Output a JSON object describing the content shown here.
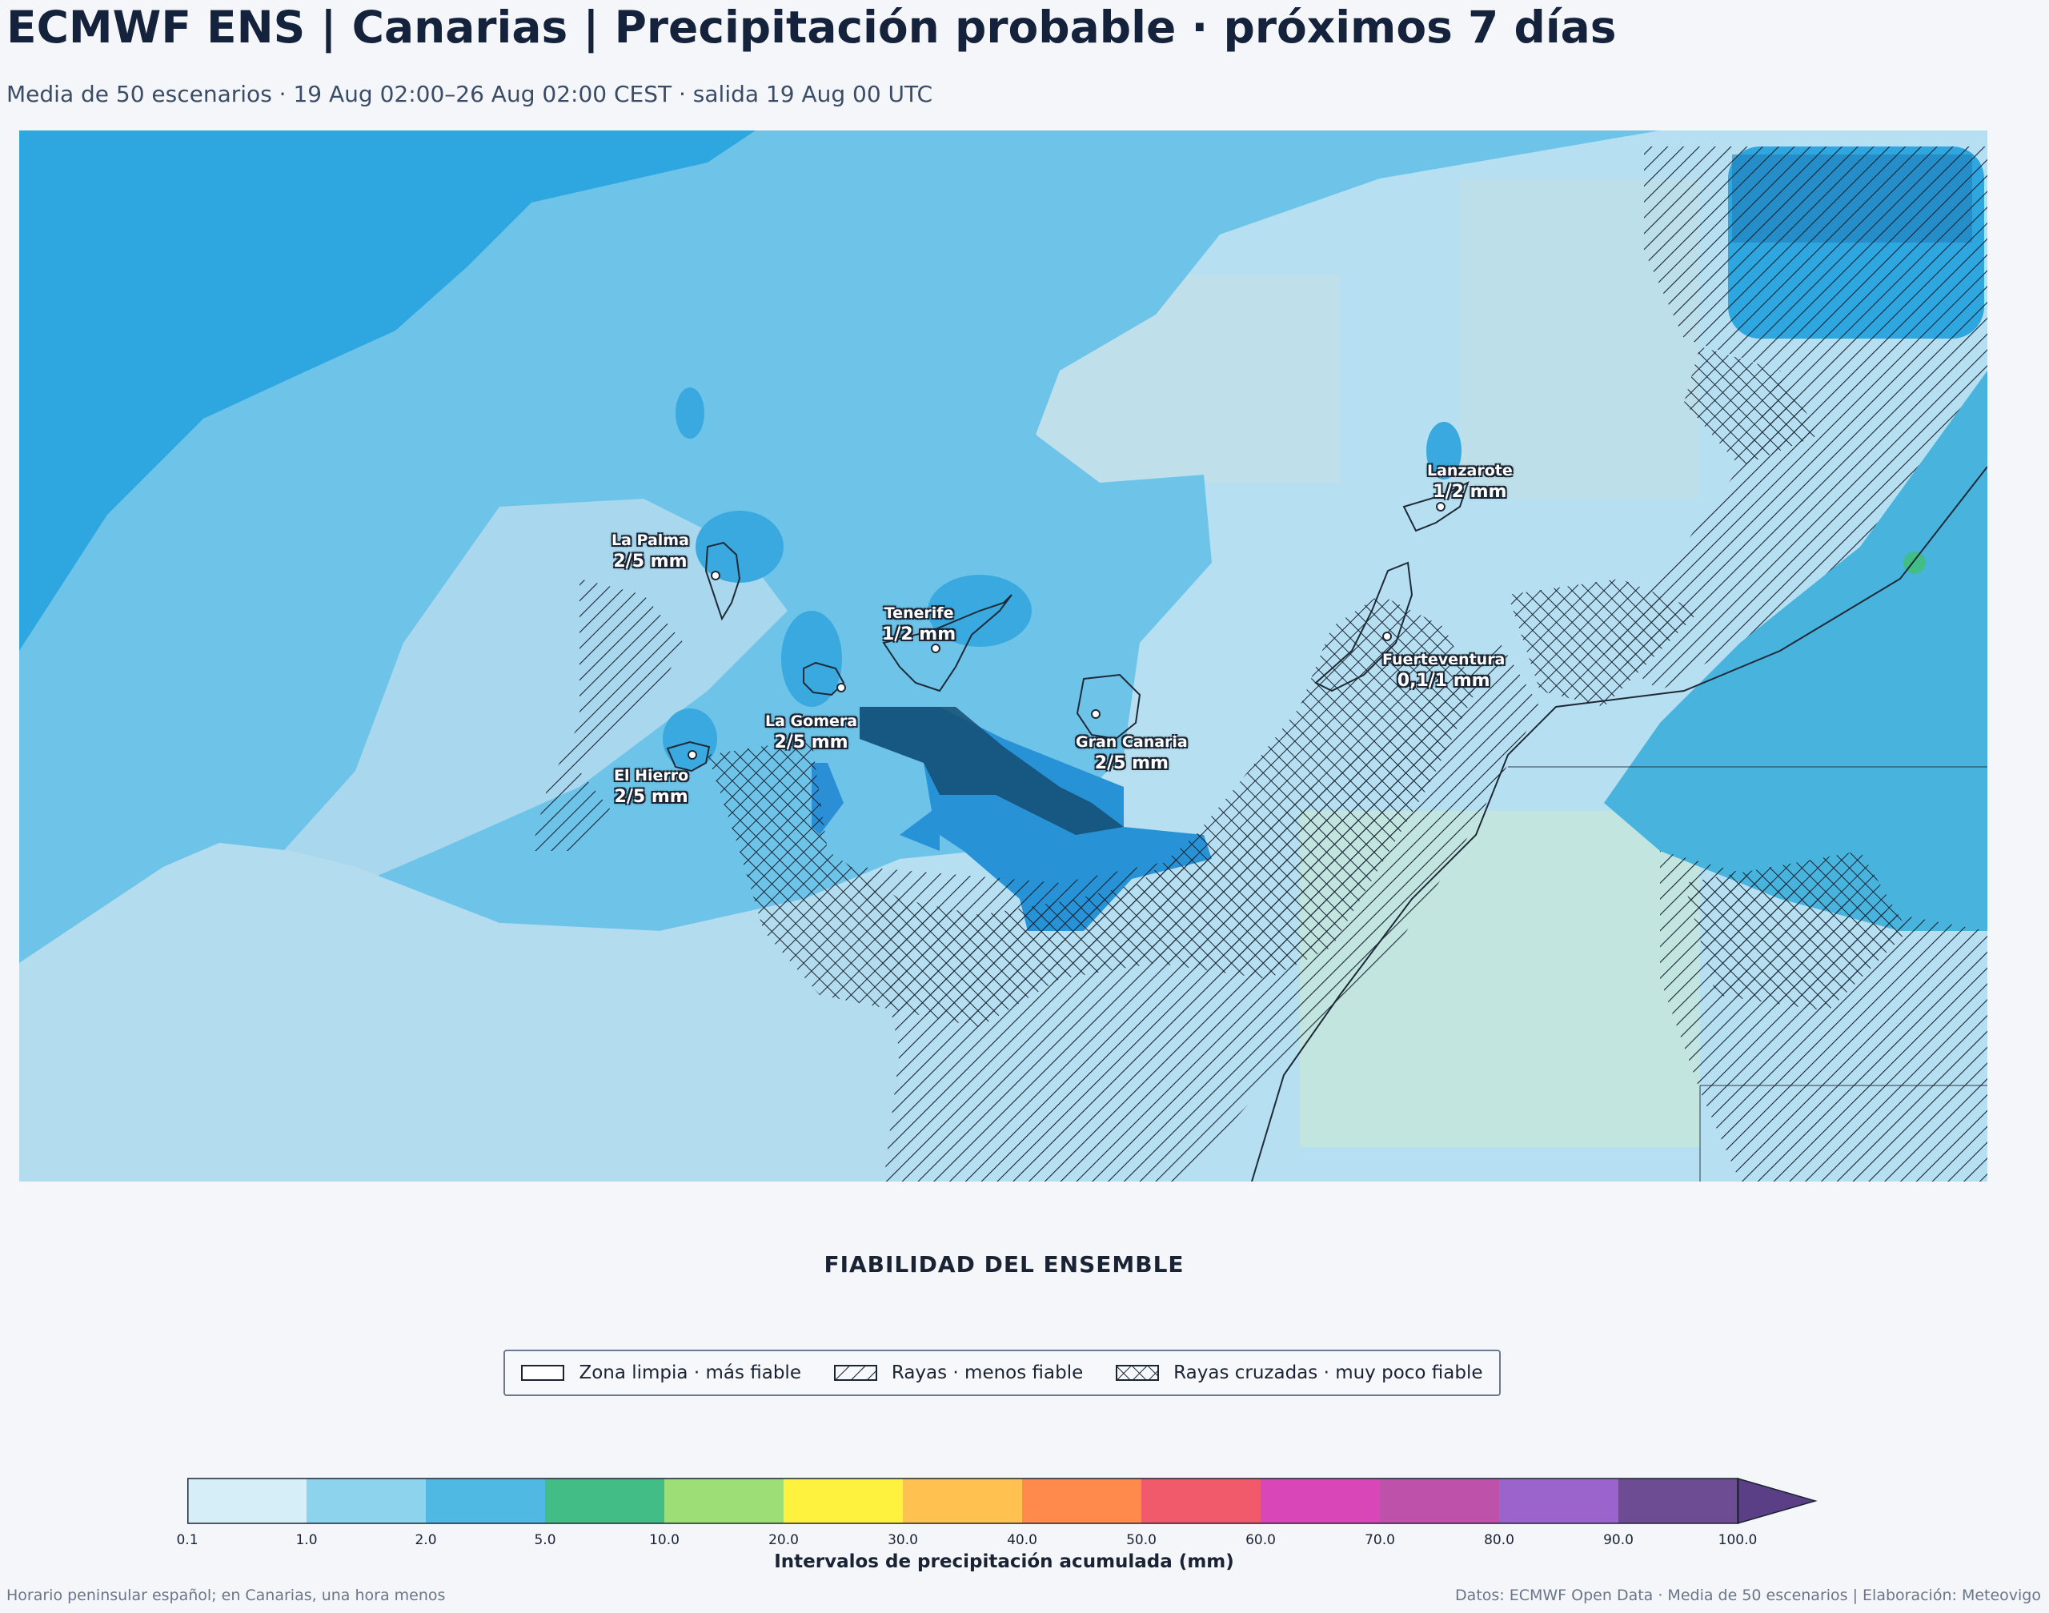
{
  "header": {
    "title": "ECMWF ENS | Canarias | Precipitación probable · próximos 7 días",
    "subtitle": "Media de 50 escenarios · 19 Aug 02:00–26 Aug 02:00 CEST · salida 19 Aug 00 UTC"
  },
  "map": {
    "islands": [
      {
        "name": "La Palma",
        "value": "2/5 mm"
      },
      {
        "name": "Tenerife",
        "value": "1/2 mm"
      },
      {
        "name": "La Gomera",
        "value": "2/5 mm"
      },
      {
        "name": "El Hierro",
        "value": "2/5 mm"
      },
      {
        "name": "Gran Canaria",
        "value": "2/5 mm"
      },
      {
        "name": "Lanzarote",
        "value": "1/2 mm"
      },
      {
        "name": "Fuerteventura",
        "value": "0,1/1 mm"
      }
    ]
  },
  "reliability": {
    "title": "FIABILIDAD DEL ENSEMBLE",
    "legend": [
      {
        "pattern": "clear",
        "label": "Zona limpia · más fiable"
      },
      {
        "pattern": "hatch",
        "label": "Rayas · menos fiable"
      },
      {
        "pattern": "crosshatch",
        "label": "Rayas cruzadas · muy poco fiable"
      }
    ]
  },
  "colorbar": {
    "label": "Intervalos de precipitación acumulada (mm)",
    "ticks": [
      "0.1",
      "1.0",
      "2.0",
      "5.0",
      "10.0",
      "20.0",
      "30.0",
      "40.0",
      "50.0",
      "60.0",
      "70.0",
      "80.0",
      "90.0",
      "100.0"
    ],
    "colors": [
      "#d5eef7",
      "#8dd3ee",
      "#4fb9e3",
      "#43bd86",
      "#9ddf76",
      "#fff23f",
      "#ffc14f",
      "#ff8a4c",
      "#f05a6a",
      "#d846b8",
      "#be52ab",
      "#9b64cc",
      "#6d4c94"
    ],
    "extend_color": "#5b3f86"
  },
  "footer": {
    "left": "Horario peninsular español; en Canarias, una hora menos",
    "right": "Datos: ECMWF Open Data · Media de 50 escenarios | Elaboración: Meteovigo"
  }
}
